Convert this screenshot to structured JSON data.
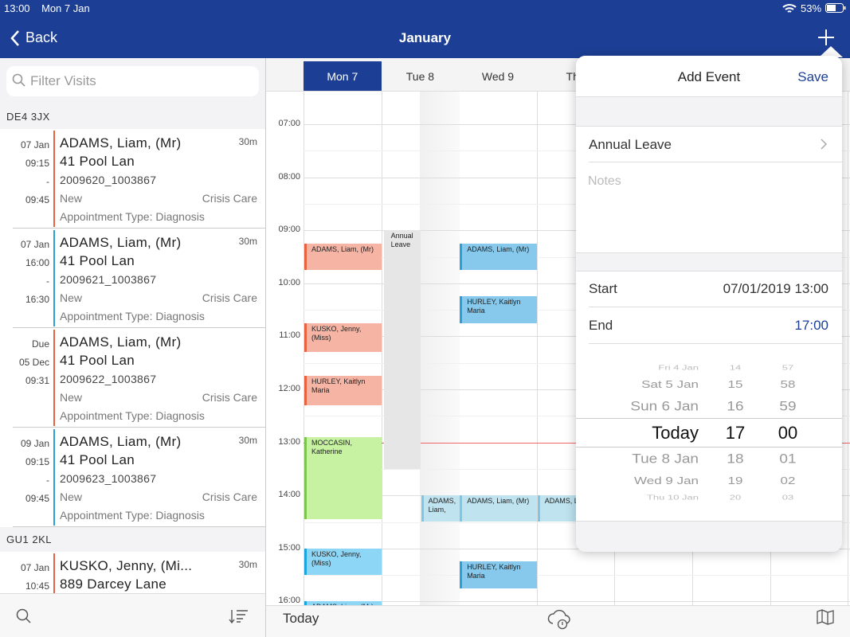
{
  "status_bar": {
    "time": "13:00",
    "date": "Mon 7 Jan",
    "battery": "53%"
  },
  "nav": {
    "back": "Back",
    "title": "January"
  },
  "sidebar": {
    "search_placeholder": "Filter Visits",
    "groups": [
      {
        "postcode": "DE4 3JX",
        "visits": [
          {
            "when": [
              "07 Jan",
              "09:15",
              "-",
              "09:45"
            ],
            "duration": "30m",
            "name": "ADAMS, Liam, (Mr)",
            "address": "41 Pool Lan",
            "ref": "2009620_1003867",
            "status": "New",
            "service": "Crisis Care",
            "type": "Appointment Type: Diagnosis",
            "color": "#e8623e"
          },
          {
            "when": [
              "07 Jan",
              "16:00",
              "-",
              "16:30"
            ],
            "duration": "30m",
            "name": "ADAMS, Liam, (Mr)",
            "address": "41 Pool Lan",
            "ref": "2009621_1003867",
            "status": "New",
            "service": "Crisis Care",
            "type": "Appointment Type: Diagnosis",
            "color": "#2a9fd8"
          },
          {
            "when": [
              "Due",
              "05 Dec",
              "09:31"
            ],
            "name": "ADAMS, Liam, (Mr)",
            "address": "41 Pool Lan",
            "ref": "2009622_1003867",
            "status": "New",
            "service": "Crisis Care",
            "type": "Appointment Type: Diagnosis",
            "color": "#e8623e"
          },
          {
            "when": [
              "09 Jan",
              "09:15",
              "-",
              "09:45"
            ],
            "duration": "30m",
            "name": "ADAMS, Liam, (Mr)",
            "address": "41 Pool Lan",
            "ref": "2009623_1003867",
            "status": "New",
            "service": "Crisis Care",
            "type": "Appointment Type: Diagnosis",
            "color": "#2a9fd8"
          }
        ]
      },
      {
        "postcode": "GU1 2KL",
        "visits": [
          {
            "when": [
              "07 Jan",
              "10:45"
            ],
            "duration": "30m",
            "name": "KUSKO, Jenny, (Mi...",
            "address": "889 Darcey Lane",
            "color": "#e8623e"
          }
        ]
      }
    ]
  },
  "calendar": {
    "days": [
      "Mon 7",
      "Tue 8",
      "Wed 9",
      "Thu"
    ],
    "times": [
      "07:00",
      "08:00",
      "09:00",
      "10:00",
      "11:00",
      "12:00",
      "13:00",
      "14:00",
      "15:00",
      "16:00"
    ],
    "events": [
      "ADAMS, Liam, (Mr)",
      "KUSKO, Jenny, (Miss)",
      "HURLEY, Kaitlyn Maria",
      "MOCCASIN, Katherine",
      "KUSKO, Jenny, (Miss)",
      "ADAMS, Liam, (Mr)",
      "Annual Leave",
      "ADAMS, Liam,",
      "ADAMS, Liam, (Mr)",
      "HURLEY, Kaitlyn Maria",
      "ADAMS, Liam, (Mr)",
      "HURLEY, Kaitlyn Maria",
      "ADAMS, L"
    ]
  },
  "toolbar": {
    "today": "Today"
  },
  "add_event": {
    "title": "Add Event",
    "save": "Save",
    "event_type": "Annual Leave",
    "notes_placeholder": "Notes",
    "start_label": "Start",
    "start_value": "07/01/2019 13:00",
    "end_label": "End",
    "end_value": "17:00",
    "picker": {
      "days": [
        "Fri 4 Jan",
        "Sat 5 Jan",
        "Sun 6 Jan",
        "Today",
        "Tue 8 Jan",
        "Wed 9 Jan",
        "Thu 10 Jan"
      ],
      "hours": [
        "14",
        "15",
        "16",
        "17",
        "18",
        "19",
        "20"
      ],
      "minutes": [
        "57",
        "58",
        "59",
        "00",
        "01",
        "02",
        "03"
      ]
    }
  }
}
